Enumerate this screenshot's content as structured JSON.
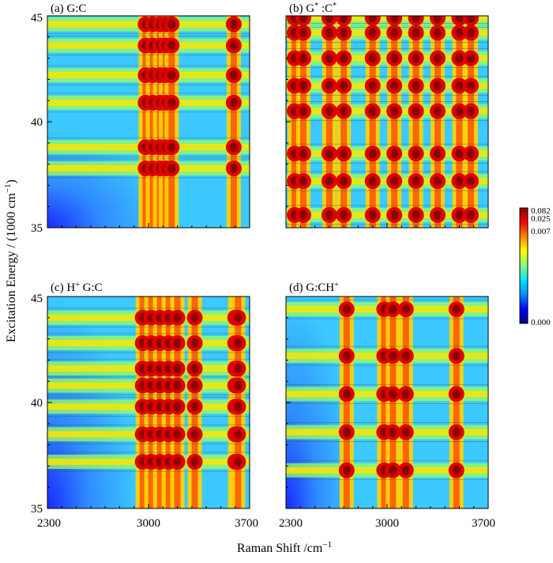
{
  "chart_data": {
    "type": "heatmap",
    "xlabel": "Raman Shift /cm",
    "xlabel_sup": "−1",
    "ylabel": "Excitation Energy / (1000 cm",
    "ylabel_sup": "−1",
    "ylabel_tail": ")",
    "x_range": [
      2300,
      3700
    ],
    "y_range": [
      35,
      45
    ],
    "x_ticks": [
      "2300",
      "3000",
      "3700"
    ],
    "y_ticks": [
      "35",
      "40",
      "45"
    ],
    "colorbar": {
      "tick_labels": [
        "0.082",
        "0.025",
        "0.007",
        "0.000"
      ],
      "stops": [
        "#00008b",
        "#0000ff",
        "#0090ff",
        "#00e5ff",
        "#7fff7f",
        "#ffff00",
        "#ff8c00",
        "#ff0000",
        "#8b0000"
      ]
    },
    "panels": [
      {
        "label": "(a) G:C",
        "vertical_bands_cm": [
          2980,
          3030,
          3080,
          3120,
          3160,
          3590
        ],
        "horizontal_bands_k": [
          37.8,
          38.8,
          40.9,
          42.2,
          43.6,
          44.6
        ],
        "low_region": "bottom-left"
      },
      {
        "label": "(b) G* :C*",
        "vertical_bands_cm": [
          2360,
          2420,
          2600,
          2700,
          2900,
          3050,
          3200,
          3350,
          3500,
          3580
        ],
        "horizontal_bands_k": [
          35.6,
          37.2,
          38.5,
          40.5,
          41.7,
          43.0,
          44.2,
          44.9
        ],
        "low_region": "none"
      },
      {
        "label": "(c) H+ G:C",
        "vertical_bands_cm": [
          2960,
          3020,
          3080,
          3140,
          3200,
          3320,
          3600,
          3620
        ],
        "horizontal_bands_k": [
          37.2,
          38.5,
          39.8,
          40.8,
          41.6,
          42.8,
          44.0
        ],
        "low_region": "left"
      },
      {
        "label": "(d) G:CH+",
        "vertical_bands_cm": [
          2720,
          2980,
          3040,
          3130,
          3480
        ],
        "horizontal_bands_k": [
          36.8,
          38.6,
          40.4,
          42.2,
          44.4
        ],
        "low_region": "left-bottom"
      }
    ]
  }
}
